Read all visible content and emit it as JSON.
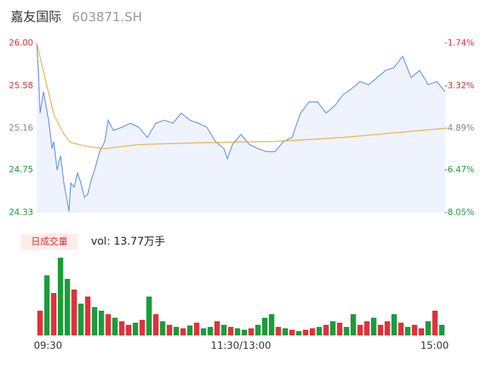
{
  "header": {
    "name": "嘉友国际",
    "code": "603871.SH"
  },
  "chart_data": {
    "type": "line",
    "x": [
      0,
      1,
      2,
      4,
      7,
      9,
      10,
      12,
      14,
      16,
      19,
      20,
      22,
      24,
      26,
      28,
      30,
      32,
      34,
      37,
      40,
      42,
      45,
      50,
      55,
      60,
      65,
      70,
      75,
      80,
      85,
      90,
      95,
      100,
      105,
      110,
      112,
      115,
      120,
      125,
      130,
      135,
      140,
      145,
      150,
      155,
      160,
      165,
      170,
      175,
      180,
      185,
      190,
      195,
      200,
      205,
      210,
      215,
      220,
      225,
      230,
      235,
      240
    ],
    "series": [
      {
        "name": "price",
        "color": "#5b8def",
        "values": [
          26.0,
          25.73,
          25.31,
          25.52,
          25.24,
          24.96,
          25.03,
          24.75,
          24.89,
          24.62,
          24.34,
          24.62,
          24.58,
          24.72,
          24.62,
          24.48,
          24.51,
          24.65,
          24.75,
          24.93,
          25.03,
          25.24,
          25.14,
          25.17,
          25.21,
          25.17,
          25.07,
          25.21,
          25.24,
          25.21,
          25.31,
          25.24,
          25.21,
          25.17,
          25.03,
          24.96,
          24.86,
          25.0,
          25.1,
          25.0,
          24.96,
          24.93,
          24.93,
          25.03,
          25.07,
          25.31,
          25.42,
          25.42,
          25.31,
          25.38,
          25.49,
          25.55,
          25.62,
          25.59,
          25.66,
          25.73,
          25.76,
          25.87,
          25.66,
          25.73,
          25.59,
          25.62,
          25.52
        ]
      },
      {
        "name": "average",
        "color": "#f0a830",
        "values": [
          26.0,
          null,
          null,
          null,
          null,
          null,
          25.3,
          null,
          null,
          25.1,
          null,
          25.02,
          null,
          null,
          null,
          null,
          24.98,
          null,
          null,
          null,
          24.96,
          null,
          null,
          null,
          null,
          25.0,
          null,
          null,
          null,
          null,
          null,
          null,
          null,
          25.02,
          null,
          null,
          null,
          null,
          null,
          null,
          null,
          null,
          25.03,
          null,
          null,
          null,
          null,
          null,
          null,
          null,
          25.07,
          null,
          null,
          null,
          null,
          null,
          null,
          null,
          25.13,
          null,
          null,
          null,
          25.16
        ]
      }
    ],
    "xlim": [
      0,
      240
    ],
    "xticks": [
      {
        "value": 0,
        "label": "09:30"
      },
      {
        "value": 120,
        "label": "11:30/13:00"
      },
      {
        "value": 240,
        "label": "15:00"
      }
    ],
    "ylim": [
      24.33,
      26.0
    ],
    "yticks": [
      {
        "value": 26.0,
        "label": "26.00"
      },
      25.58,
      25.16,
      24.75,
      24.33
    ],
    "ytick_colors": [
      "#e0313a",
      "#e0313a",
      "#888888",
      "#1a9c3a",
      "#1a9c3a"
    ],
    "y2ticks": [
      "-1.74%",
      "-3.32%",
      "-4.89%",
      "-6.47%",
      "-8.05%"
    ],
    "volume": {
      "tag": "日成交量",
      "label": "vol: 13.77万手",
      "values": [
        35,
        85,
        60,
        110,
        80,
        65,
        45,
        55,
        40,
        35,
        30,
        25,
        20,
        15,
        18,
        22,
        55,
        30,
        20,
        15,
        12,
        10,
        14,
        18,
        10,
        12,
        20,
        15,
        12,
        10,
        8,
        10,
        15,
        25,
        30,
        12,
        10,
        8,
        6,
        8,
        10,
        12,
        15,
        20,
        18,
        12,
        30,
        15,
        20,
        25,
        15,
        20,
        30,
        18,
        12,
        15,
        10,
        20,
        35,
        15
      ],
      "colors": [
        "#e0313a",
        "#1a9c3a",
        "#e0313a",
        "#1a9c3a",
        "#1a9c3a",
        "#e0313a",
        "#1a9c3a",
        "#e0313a",
        "#1a9c3a",
        "#1a9c3a",
        "#e0313a",
        "#1a9c3a",
        "#e0313a",
        "#e0313a",
        "#1a9c3a",
        "#e0313a",
        "#1a9c3a",
        "#e0313a",
        "#1a9c3a",
        "#e0313a",
        "#1a9c3a",
        "#e0313a",
        "#1a9c3a",
        "#e0313a",
        "#1a9c3a",
        "#1a9c3a",
        "#e0313a",
        "#1a9c3a",
        "#e0313a",
        "#1a9c3a",
        "#1a9c3a",
        "#e0313a",
        "#1a9c3a",
        "#1a9c3a",
        "#1a9c3a",
        "#e0313a",
        "#1a9c3a",
        "#e0313a",
        "#1a9c3a",
        "#e0313a",
        "#e0313a",
        "#1a9c3a",
        "#e0313a",
        "#1a9c3a",
        "#e0313a",
        "#1a9c3a",
        "#1a9c3a",
        "#e0313a",
        "#e0313a",
        "#1a9c3a",
        "#e0313a",
        "#e0313a",
        "#1a9c3a",
        "#e0313a",
        "#1a9c3a",
        "#e0313a",
        "#e0313a",
        "#1a9c3a",
        "#e0313a",
        "#1a9c3a"
      ]
    }
  }
}
